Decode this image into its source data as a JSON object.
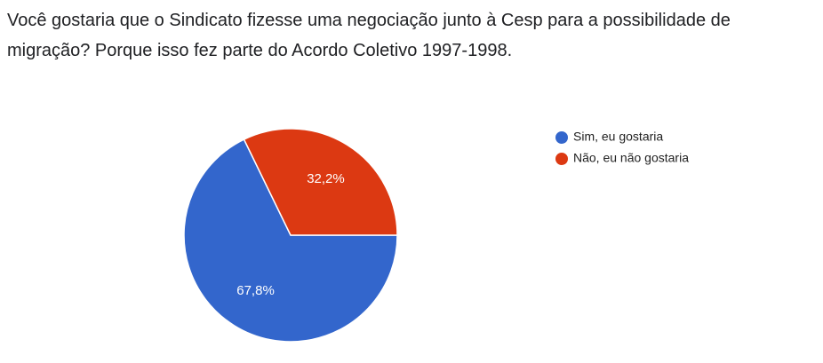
{
  "chart_data": {
    "type": "pie",
    "title": "Você gostaria que o Sindicato fizesse uma negociação junto à Cesp para a possibilidade de migração? Porque isso fez parte do Acordo Coletivo 1997-1998.",
    "categories": [
      "Sim, eu gostaria",
      "Não, eu não gostaria"
    ],
    "values": [
      67.8,
      32.2
    ],
    "value_labels": [
      "67,8%",
      "32,2%"
    ],
    "colors": [
      "#3366cc",
      "#dc3912"
    ]
  }
}
